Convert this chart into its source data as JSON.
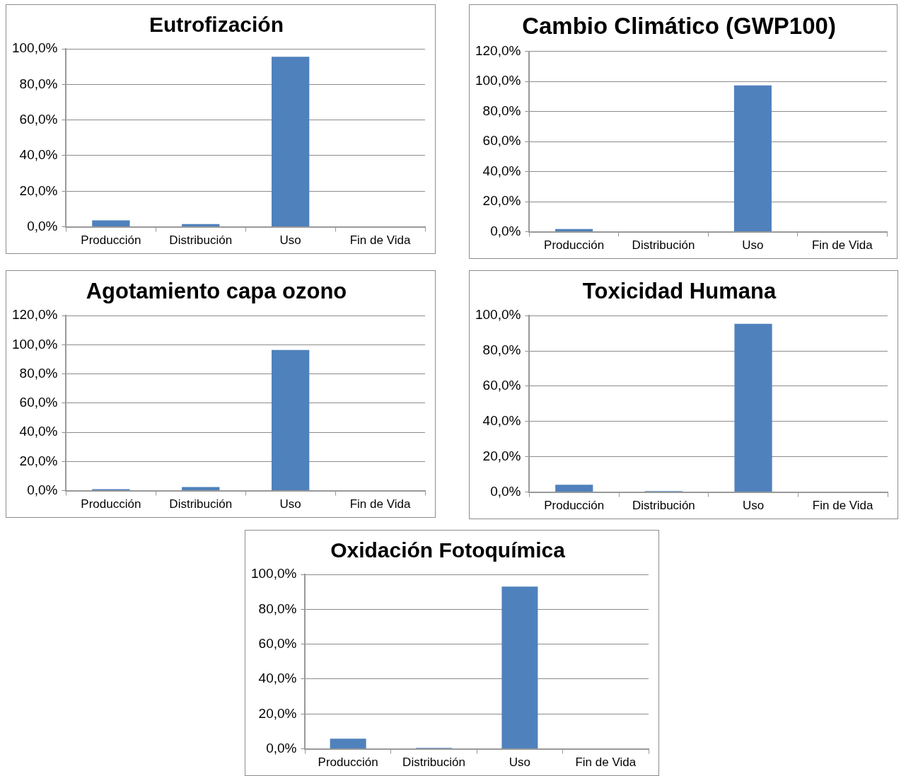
{
  "chart_data": [
    {
      "type": "bar",
      "title": "Eutrofización",
      "categories": [
        "Producción",
        "Distribución",
        "Uso",
        "Fin de Vida"
      ],
      "values": [
        3.6,
        1.5,
        95.5,
        0
      ],
      "color": "#4f81bd",
      "ylim": [
        0,
        100
      ],
      "yticks": [
        {
          "value": 0,
          "label": "0,0%"
        },
        {
          "value": 20,
          "label": "20,0%"
        },
        {
          "value": 40,
          "label": "40,0%"
        },
        {
          "value": 60,
          "label": "60,0%"
        },
        {
          "value": 80,
          "label": "80,0%"
        },
        {
          "value": 100,
          "label": "100,0%"
        }
      ],
      "grid": "y",
      "legend": false
    },
    {
      "type": "bar",
      "title": "Cambio Climático (GWP100)",
      "categories": [
        "Producción",
        "Distribución",
        "Uso",
        "Fin de Vida"
      ],
      "values": [
        1.8,
        0,
        97.4,
        0
      ],
      "color": "#4f81bd",
      "ylim": [
        0,
        120
      ],
      "yticks": [
        {
          "value": 0,
          "label": "0,0%"
        },
        {
          "value": 20,
          "label": "20,0%"
        },
        {
          "value": 40,
          "label": "40,0%"
        },
        {
          "value": 60,
          "label": "60,0%"
        },
        {
          "value": 80,
          "label": "80,0%"
        },
        {
          "value": 100,
          "label": "100,0%"
        },
        {
          "value": 120,
          "label": "120,0%"
        }
      ],
      "grid": "y",
      "legend": false
    },
    {
      "type": "bar",
      "title": "Agotamiento capa ozono",
      "categories": [
        "Producción",
        "Distribución",
        "Uso",
        "Fin de Vida"
      ],
      "values": [
        1,
        2.5,
        96.5,
        0
      ],
      "color": "#4f81bd",
      "ylim": [
        0,
        120
      ],
      "yticks": [
        {
          "value": 0,
          "label": "0,0%"
        },
        {
          "value": 20,
          "label": "20,0%"
        },
        {
          "value": 40,
          "label": "40,0%"
        },
        {
          "value": 60,
          "label": "60,0%"
        },
        {
          "value": 80,
          "label": "80,0%"
        },
        {
          "value": 100,
          "label": "100,0%"
        },
        {
          "value": 120,
          "label": "120,0%"
        }
      ],
      "grid": "y",
      "legend": false
    },
    {
      "type": "bar",
      "title": "Toxicidad Humana",
      "categories": [
        "Producción",
        "Distribución",
        "Uso",
        "Fin de Vida"
      ],
      "values": [
        4.2,
        0.5,
        95.4,
        0
      ],
      "color": "#4f81bd",
      "ylim": [
        0,
        100
      ],
      "yticks": [
        {
          "value": 0,
          "label": "0,0%"
        },
        {
          "value": 20,
          "label": "20,0%"
        },
        {
          "value": 40,
          "label": "40,0%"
        },
        {
          "value": 60,
          "label": "60,0%"
        },
        {
          "value": 80,
          "label": "80,0%"
        },
        {
          "value": 100,
          "label": "100,0%"
        }
      ],
      "grid": "y",
      "legend": false
    },
    {
      "type": "bar",
      "title": "Oxidación Fotoquímica",
      "categories": [
        "Producción",
        "Distribución",
        "Uso",
        "Fin de Vida"
      ],
      "values": [
        5.8,
        0.5,
        93,
        0
      ],
      "color": "#4f81bd",
      "ylim": [
        0,
        100
      ],
      "yticks": [
        {
          "value": 0,
          "label": "0,0%"
        },
        {
          "value": 20,
          "label": "20,0%"
        },
        {
          "value": 40,
          "label": "40,0%"
        },
        {
          "value": 60,
          "label": "60,0%"
        },
        {
          "value": 80,
          "label": "80,0%"
        },
        {
          "value": 100,
          "label": "100,0%"
        }
      ],
      "grid": "y",
      "legend": false
    }
  ]
}
